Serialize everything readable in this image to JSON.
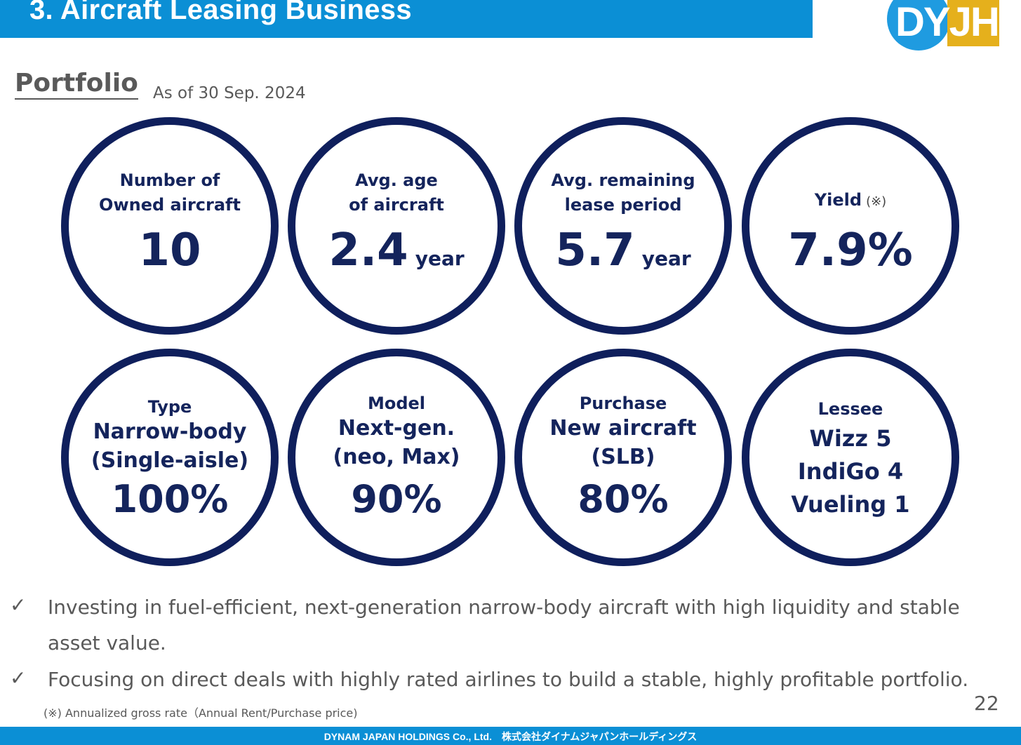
{
  "header": {
    "title": "3.  Aircraft Leasing Business",
    "logo_text": "DYJH",
    "bar_color": "#0b8fd5",
    "logo_circle_color": "#1f9be0",
    "logo_square_color": "#e5b01c"
  },
  "section": {
    "title": "Portfolio",
    "as_of": "As of 30 Sep. 2024"
  },
  "metrics": [
    {
      "label_1": "Number of",
      "label_2": "Owned aircraft",
      "value": "10"
    },
    {
      "label_1": "Avg. age",
      "label_2": "of aircraft",
      "value": "2.4",
      "unit": "year"
    },
    {
      "label_1": "Avg. remaining",
      "label_2": "lease period",
      "value": "5.7",
      "unit": "year"
    },
    {
      "label_1": "Yield",
      "note_mark": "(※)",
      "value": "7.9%"
    }
  ],
  "breakdown": [
    {
      "label": "Type",
      "line_1": "Narrow-body",
      "line_2": "(Single-aisle)",
      "value": "100%"
    },
    {
      "label": "Model",
      "line_1": "Next-gen.",
      "line_2": "(neo, Max)",
      "value": "90%"
    },
    {
      "label": "Purchase",
      "line_1": "New aircraft",
      "line_2": "(SLB)",
      "value": "80%"
    },
    {
      "label": "Lessee",
      "line_1": "Wizz 5",
      "line_2": "IndiGo 4",
      "line_3": "Vueling 1"
    }
  ],
  "circle_color": "#0f1f5c",
  "bullets": [
    {
      "mark": "✓",
      "text": "Investing in fuel-efficient, next-generation narrow-body aircraft with high liquidity and stable asset value."
    },
    {
      "mark": "✓",
      "text": "Focusing on direct deals with highly rated airlines to build a stable, highly profitable portfolio."
    }
  ],
  "footnote": "(※)  Annualized gross rate（Annual Rent/Purchase price)",
  "page_number": "22",
  "footer": "DYNAM JAPAN HOLDINGS Co., Ltd.　株式会社ダイナムジャパンホールディングス"
}
